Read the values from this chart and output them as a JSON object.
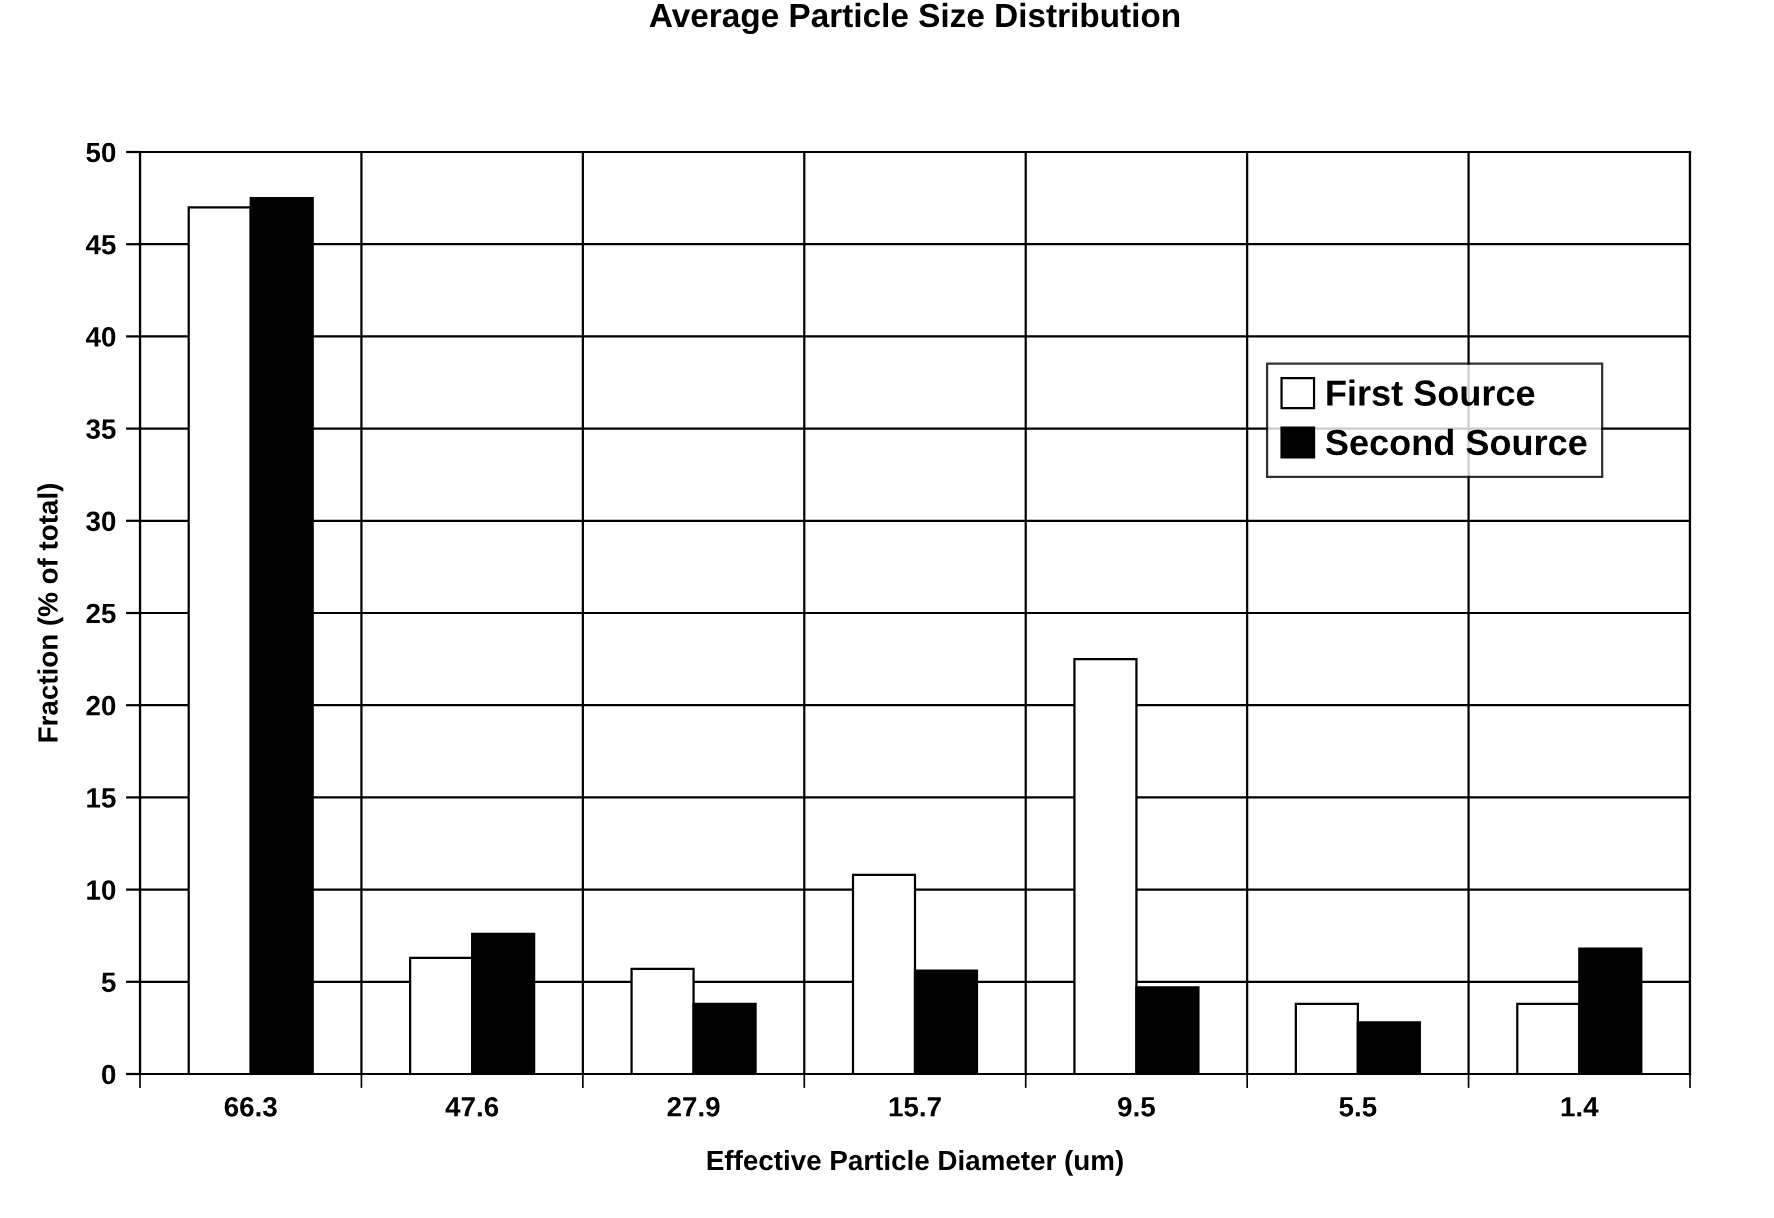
{
  "chart_data": {
    "type": "bar",
    "title": "Average Particle Size Distribution",
    "xlabel": "Effective Particle Diameter (um)",
    "ylabel": "Fraction (% of total)",
    "categories": [
      "66.3",
      "47.6",
      "27.9",
      "15.7",
      "9.5",
      "5.5",
      "1.4"
    ],
    "series": [
      {
        "name": "First Source",
        "color": "#ffffff",
        "values": [
          47.0,
          6.3,
          5.7,
          10.8,
          22.5,
          3.8,
          3.8
        ]
      },
      {
        "name": "Second Source",
        "color": "#000000",
        "values": [
          47.5,
          7.6,
          3.8,
          5.6,
          4.7,
          2.8,
          6.8
        ]
      }
    ],
    "ylim": [
      0,
      50
    ],
    "yticks": [
      0,
      5,
      10,
      15,
      20,
      25,
      30,
      35,
      40,
      45,
      50
    ],
    "grid": true,
    "legend": "top right"
  }
}
